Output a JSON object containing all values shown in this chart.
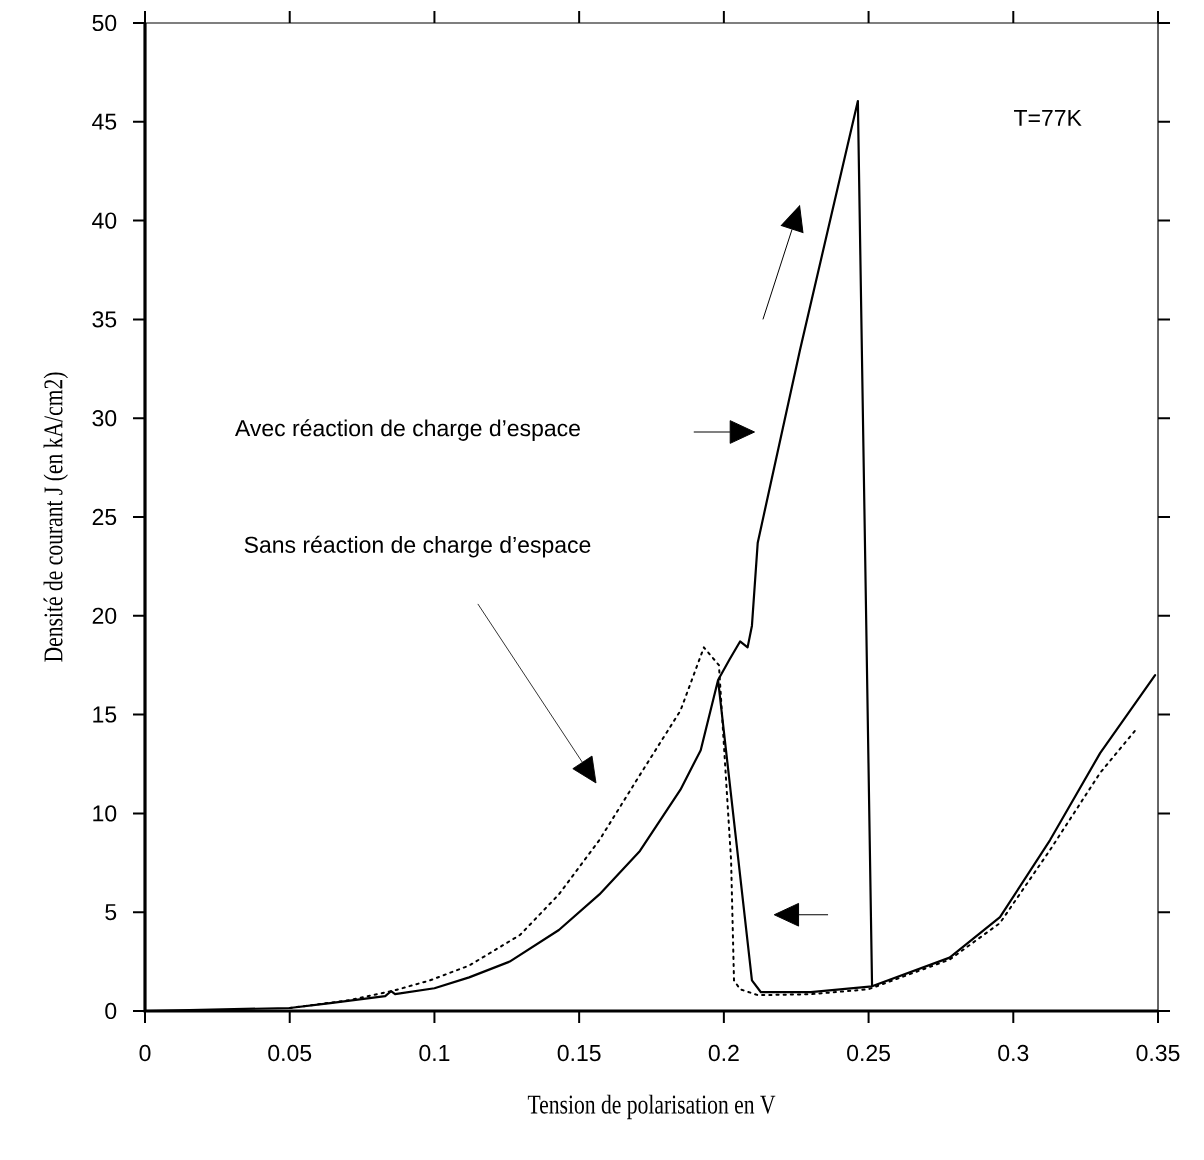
{
  "chart_data": {
    "type": "line",
    "xlabel": "Tension de polarisation en V",
    "ylabel": "Densité de courant J (en kA/cm2)",
    "annotations": [
      "T=77K",
      "Avec réaction de charge d’espace",
      "Sans réaction de charge d’espace"
    ],
    "xlim": [
      0,
      0.35
    ],
    "ylim": [
      0,
      50
    ],
    "xticks": [
      0,
      0.05,
      0.1,
      0.15,
      0.2,
      0.25,
      0.3,
      0.35
    ],
    "yticks": [
      0,
      5,
      10,
      15,
      20,
      25,
      30,
      35,
      40,
      45,
      50
    ],
    "grid": false,
    "marker": "none",
    "series": [
      {
        "color": "#000000",
        "line_style": "solid",
        "x": [
          0,
          0.05,
          0.064,
          0.083,
          0.085,
          0.0864,
          0.1,
          0.112,
          0.126,
          0.143,
          0.157,
          0.171,
          0.185,
          0.192,
          0.198,
          0.202,
          0.2056,
          0.2082,
          0.2097,
          0.2117,
          0.2263,
          0.2463,
          0.2512,
          0.278,
          0.2954,
          0.3127,
          0.33,
          0.349,
          null,
          0.2512,
          0.23,
          0.2128,
          0.2097,
          0.198
        ],
        "values": [
          0,
          0.15,
          0.4,
          0.75,
          1.0,
          0.85,
          1.15,
          1.7,
          2.5,
          4.1,
          5.9,
          8.1,
          11.2,
          13.2,
          16.75,
          17.8,
          18.7,
          18.4,
          19.5,
          23.7,
          33.45,
          46.05,
          1.25,
          2.7,
          4.75,
          8.65,
          13.05,
          17.0,
          null,
          1.25,
          0.95,
          0.95,
          1.55,
          16.75
        ]
      },
      {
        "color": "#000000",
        "line_style": "dotted",
        "x": [
          0.05,
          0.0708,
          0.0864,
          0.0985,
          0.112,
          0.1296,
          0.143,
          0.157,
          0.171,
          0.185,
          0.1931,
          0.1983,
          0.2025,
          0.2035,
          0.2056,
          0.2118,
          0.23,
          0.25,
          0.278,
          0.2954,
          0.3127,
          0.33,
          0.343
        ],
        "values": [
          0.15,
          0.55,
          1.05,
          1.55,
          2.3,
          3.85,
          5.9,
          8.65,
          11.95,
          15.2,
          18.4,
          17.5,
          7.6,
          1.55,
          1.1,
          0.8,
          0.85,
          1.1,
          2.6,
          4.45,
          8.15,
          12.05,
          14.35
        ]
      }
    ]
  }
}
